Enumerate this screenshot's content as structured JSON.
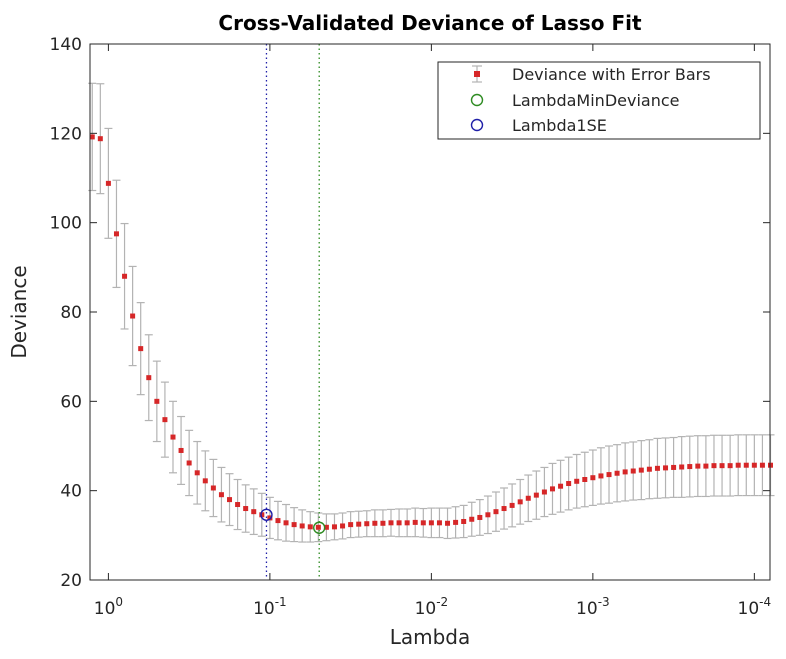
{
  "chart_data": {
    "type": "scatter",
    "title": "Cross-Validated Deviance of Lasso Fit",
    "xlabel": "Lambda",
    "ylabel": "Deviance",
    "xscale": "log",
    "x_direction": "reversed",
    "xlim": [
      1.3,
      8e-05
    ],
    "ylim": [
      20,
      140
    ],
    "yticks": [
      20,
      40,
      60,
      80,
      100,
      120,
      140
    ],
    "xticks": [
      {
        "value": 1,
        "base": "10",
        "exp": "0"
      },
      {
        "value": 0.1,
        "base": "10",
        "exp": "-1"
      },
      {
        "value": 0.01,
        "base": "10",
        "exp": "-2"
      },
      {
        "value": 0.001,
        "base": "10",
        "exp": "-3"
      },
      {
        "value": 0.0001,
        "base": "10",
        "exp": "-4"
      }
    ],
    "grid": false,
    "legend": {
      "location": "top-right",
      "entries": [
        "Deviance with Error Bars",
        "LambdaMinDeviance",
        "Lambda1SE"
      ]
    },
    "series": [
      {
        "name": "Deviance with Error Bars",
        "color": "#d62728",
        "errorbar_color": "#b3b3b3",
        "log10_lambda_start": 0.1,
        "log10_lambda_step": -0.05,
        "values": [
          119.2,
          118.8,
          108.8,
          97.5,
          88.0,
          79.1,
          71.8,
          65.3,
          60.0,
          55.9,
          52.0,
          49.0,
          46.2,
          44.0,
          42.2,
          40.6,
          39.1,
          38.0,
          36.9,
          36.0,
          35.3,
          34.6,
          33.9,
          33.3,
          32.8,
          32.4,
          32.1,
          31.9,
          31.8,
          31.8,
          31.9,
          32.1,
          32.4,
          32.5,
          32.6,
          32.7,
          32.7,
          32.8,
          32.8,
          32.8,
          32.9,
          32.8,
          32.8,
          32.8,
          32.7,
          32.9,
          33.1,
          33.6,
          34.0,
          34.6,
          35.3,
          36.0,
          36.7,
          37.5,
          38.3,
          39.0,
          39.7,
          40.4,
          41.0,
          41.6,
          42.1,
          42.5,
          42.9,
          43.3,
          43.6,
          43.9,
          44.2,
          44.4,
          44.6,
          44.8,
          45.0,
          45.1,
          45.2,
          45.3,
          45.4,
          45.5,
          45.5,
          45.6,
          45.6,
          45.6,
          45.7,
          45.7,
          45.7,
          45.7,
          45.7
        ],
        "errors": [
          12.0,
          12.3,
          12.3,
          12.0,
          11.8,
          11.1,
          10.3,
          9.6,
          9.0,
          8.4,
          8.0,
          7.6,
          7.3,
          7.0,
          6.7,
          6.4,
          6.1,
          5.8,
          5.6,
          5.3,
          5.1,
          4.8,
          4.6,
          4.3,
          4.1,
          3.8,
          3.6,
          3.4,
          3.2,
          3.0,
          2.9,
          2.9,
          2.9,
          2.9,
          2.9,
          3.0,
          3.0,
          3.0,
          3.1,
          3.1,
          3.2,
          3.2,
          3.3,
          3.3,
          3.4,
          3.5,
          3.6,
          3.8,
          4.0,
          4.2,
          4.4,
          4.6,
          4.8,
          5.0,
          5.2,
          5.4,
          5.5,
          5.7,
          5.8,
          5.9,
          6.0,
          6.1,
          6.2,
          6.3,
          6.4,
          6.4,
          6.5,
          6.5,
          6.6,
          6.6,
          6.7,
          6.7,
          6.7,
          6.8,
          6.8,
          6.8,
          6.8,
          6.8,
          6.8,
          6.8,
          6.8,
          6.8,
          6.8,
          6.8,
          6.8
        ]
      }
    ],
    "lambda_min_deviance": {
      "lambda": 0.0495,
      "deviance": 31.7,
      "color": "#2e8b22"
    },
    "lambda_1se": {
      "lambda": 0.105,
      "deviance": 34.6,
      "color": "#1f1fa8"
    }
  }
}
